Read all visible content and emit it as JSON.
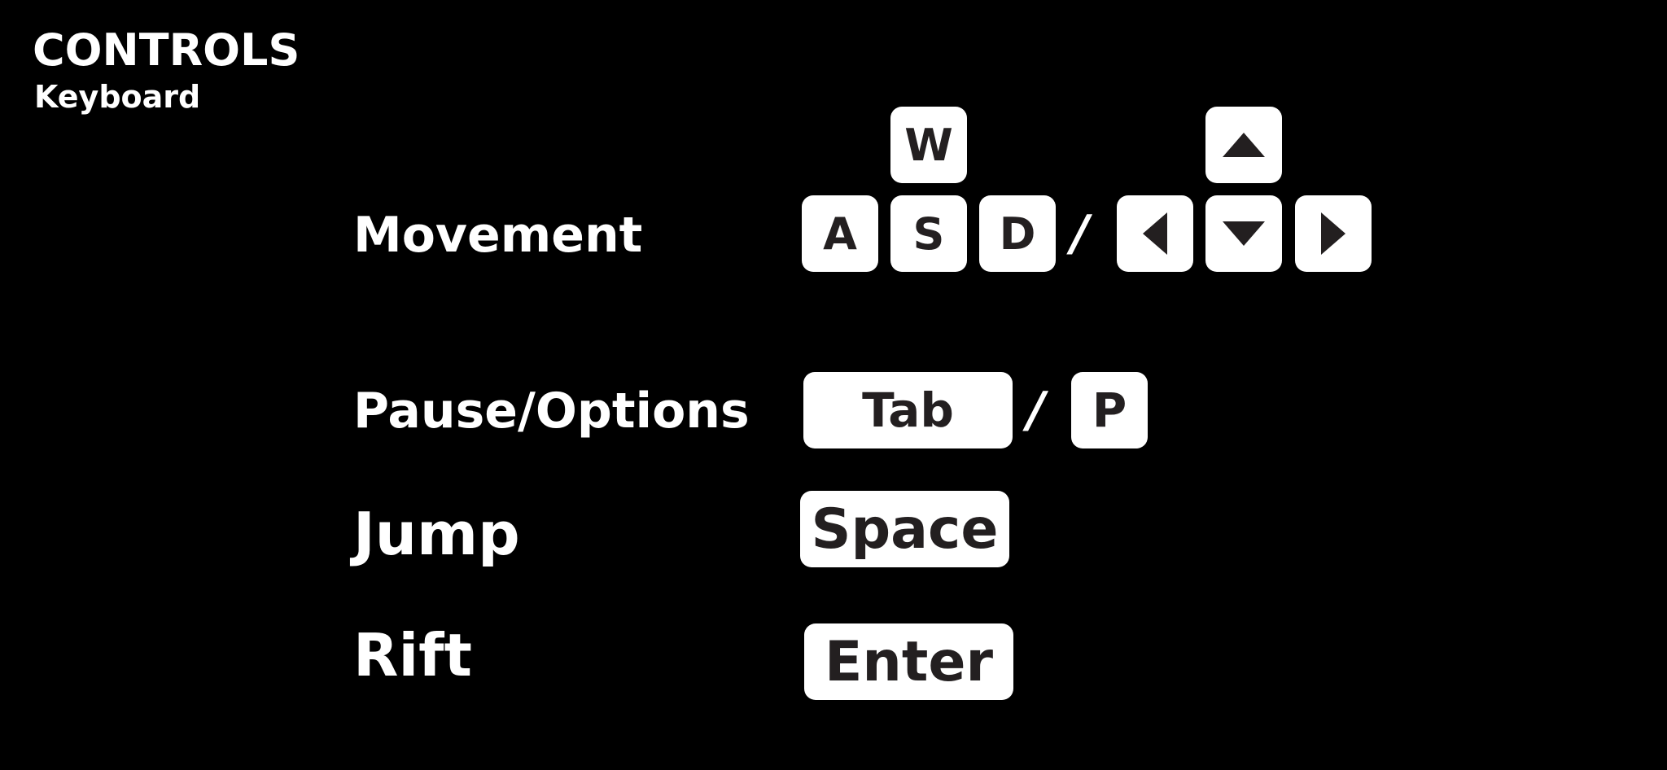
{
  "header": {
    "title": "CONTROLS",
    "subtitle": "Keyboard"
  },
  "controls": {
    "movement": {
      "label": "Movement",
      "keys_letters": [
        "W",
        "A",
        "S",
        "D"
      ],
      "separator": "/",
      "keys_arrows": [
        "arrow-up-icon",
        "arrow-left-icon",
        "arrow-down-icon",
        "arrow-right-icon"
      ]
    },
    "pause": {
      "label": "Pause/Options",
      "key_primary": "Tab",
      "separator": "/",
      "key_secondary": "P"
    },
    "jump": {
      "label": "Jump",
      "key": "Space"
    },
    "rift": {
      "label": "Rift",
      "key": "Enter"
    }
  },
  "colors": {
    "background": "#000000",
    "text": "#ffffff",
    "key_fill": "#ffffff",
    "key_glyph": "#231f20"
  }
}
